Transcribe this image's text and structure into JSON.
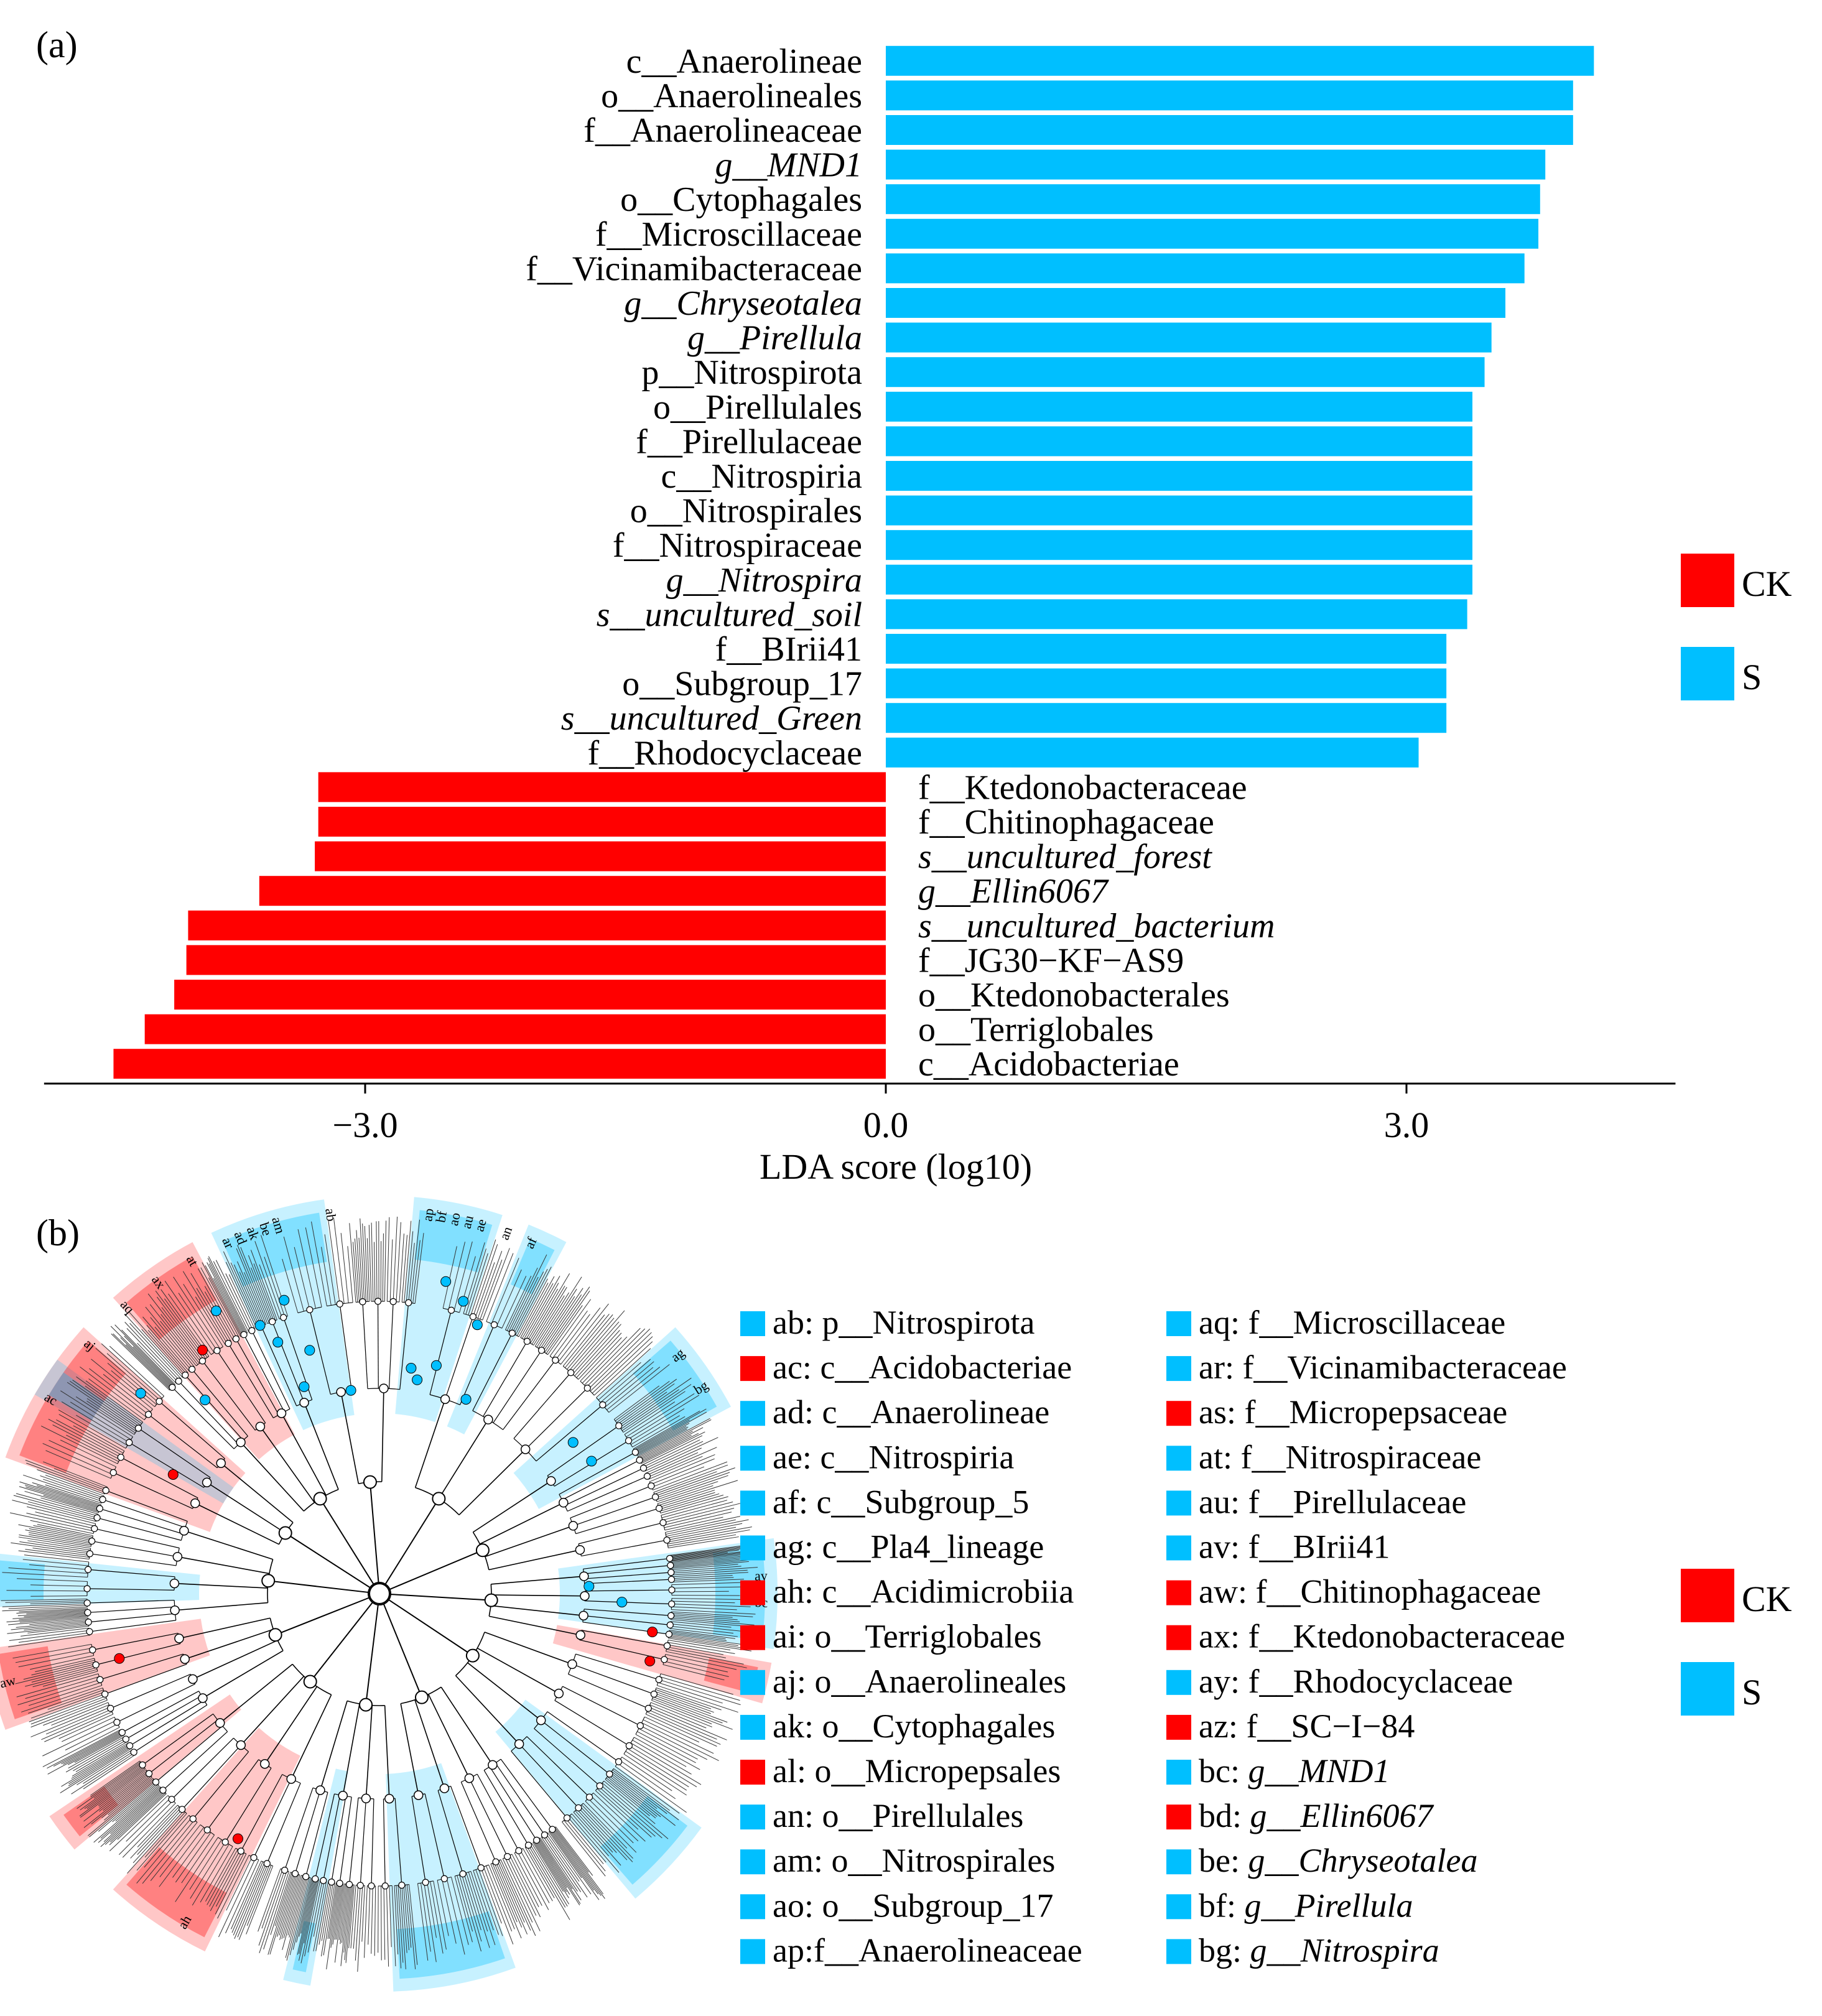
{
  "panels": {
    "a": "(a)",
    "b": "(b)"
  },
  "colors": {
    "CK": "#ff0000",
    "S": "#00bfff",
    "axis": "#000000",
    "tree": "#000000"
  },
  "legend_a": [
    {
      "label": "CK",
      "color": "#ff0000"
    },
    {
      "label": "S",
      "color": "#00bfff"
    }
  ],
  "legend_b": [
    {
      "label": "CK",
      "color": "#ff0000"
    },
    {
      "label": "S",
      "color": "#00bfff"
    }
  ],
  "chart_data": [
    {
      "type": "bar",
      "orientation": "horizontal",
      "xlabel": "LDA score (log10)",
      "xticks": [
        "−3.0",
        "0.0",
        "3.0"
      ],
      "xtick_values": [
        -3.0,
        0.0,
        3.0
      ],
      "xlim": [
        -4.85,
        4.55
      ],
      "grid": false,
      "legend_position": "right",
      "bars": [
        {
          "label": "c__Anaerolineae",
          "value": 4.08,
          "group": "S",
          "italic": false
        },
        {
          "label": "o__Anaerolineales",
          "value": 3.96,
          "group": "S",
          "italic": false
        },
        {
          "label": "f__Anaerolineaceae",
          "value": 3.96,
          "group": "S",
          "italic": false
        },
        {
          "label": "g__MND1",
          "value": 3.8,
          "group": "S",
          "italic": true
        },
        {
          "label": "o__Cytophagales",
          "value": 3.77,
          "group": "S",
          "italic": false
        },
        {
          "label": "f__Microscillaceae",
          "value": 3.76,
          "group": "S",
          "italic": false
        },
        {
          "label": "f__Vicinamibacteraceae",
          "value": 3.68,
          "group": "S",
          "italic": false
        },
        {
          "label": "g__Chryseotalea",
          "value": 3.57,
          "group": "S",
          "italic": true
        },
        {
          "label": "g__Pirellula",
          "value": 3.49,
          "group": "S",
          "italic": true
        },
        {
          "label": "p__Nitrospirota",
          "value": 3.45,
          "group": "S",
          "italic": false
        },
        {
          "label": "o__Pirellulales",
          "value": 3.38,
          "group": "S",
          "italic": false
        },
        {
          "label": "f__Pirellulaceae",
          "value": 3.38,
          "group": "S",
          "italic": false
        },
        {
          "label": "c__Nitrospiria",
          "value": 3.38,
          "group": "S",
          "italic": false
        },
        {
          "label": "o__Nitrospirales",
          "value": 3.38,
          "group": "S",
          "italic": false
        },
        {
          "label": "f__Nitrospiraceae",
          "value": 3.38,
          "group": "S",
          "italic": false
        },
        {
          "label": "g__Nitrospira",
          "value": 3.38,
          "group": "S",
          "italic": true
        },
        {
          "label": "s__uncultured_soil",
          "value": 3.35,
          "group": "S",
          "italic": true
        },
        {
          "label": "f__BIrii41",
          "value": 3.23,
          "group": "S",
          "italic": false
        },
        {
          "label": "o__Subgroup_17",
          "value": 3.23,
          "group": "S",
          "italic": false
        },
        {
          "label": "s__uncultured_Green",
          "value": 3.23,
          "group": "S",
          "italic": true
        },
        {
          "label": "f__Rhodocyclaceae",
          "value": 3.07,
          "group": "S",
          "italic": false
        },
        {
          "label": "f__Ktedonobacteraceae",
          "value": -3.27,
          "group": "CK",
          "italic": false
        },
        {
          "label": "f__Chitinophagaceae",
          "value": -3.27,
          "group": "CK",
          "italic": false
        },
        {
          "label": "s__uncultured_forest",
          "value": -3.29,
          "group": "CK",
          "italic": true
        },
        {
          "label": "g__Ellin6067",
          "value": -3.61,
          "group": "CK",
          "italic": true
        },
        {
          "label": "s__uncultured_bacterium",
          "value": -4.02,
          "group": "CK",
          "italic": true
        },
        {
          "label": "f__JG30−KF−AS9",
          "value": -4.03,
          "group": "CK",
          "italic": false
        },
        {
          "label": "o__Ktedonobacterales",
          "value": -4.1,
          "group": "CK",
          "italic": false
        },
        {
          "label": "o__Terriglobales",
          "value": -4.27,
          "group": "CK",
          "italic": false
        },
        {
          "label": "c__Acidobacteriae",
          "value": -4.45,
          "group": "CK",
          "italic": false
        }
      ]
    },
    {
      "type": "cladogram",
      "labels_on_tree": [
        {
          "code": "ab",
          "group": "S"
        },
        {
          "code": "ac",
          "group": "CK"
        },
        {
          "code": "ad",
          "group": "S"
        },
        {
          "code": "ae",
          "group": "S"
        },
        {
          "code": "af",
          "group": "S"
        },
        {
          "code": "ag",
          "group": "S"
        },
        {
          "code": "ai",
          "group": "CK"
        },
        {
          "code": "aj",
          "group": "S"
        },
        {
          "code": "ak",
          "group": "S"
        },
        {
          "code": "am",
          "group": "S"
        },
        {
          "code": "an",
          "group": "S"
        },
        {
          "code": "ao",
          "group": "S"
        },
        {
          "code": "ap",
          "group": "S"
        },
        {
          "code": "aq",
          "group": "S"
        },
        {
          "code": "ar",
          "group": "S"
        },
        {
          "code": "at",
          "group": "S"
        },
        {
          "code": "au",
          "group": "S"
        },
        {
          "code": "aw",
          "group": "CK"
        },
        {
          "code": "ax",
          "group": "CK"
        },
        {
          "code": "ay",
          "group": "S"
        },
        {
          "code": "bc",
          "group": "S"
        },
        {
          "code": "bd",
          "group": "CK"
        },
        {
          "code": "be",
          "group": "S"
        },
        {
          "code": "bf",
          "group": "S"
        },
        {
          "code": "bg",
          "group": "S"
        },
        {
          "code": "ah",
          "group": "CK"
        }
      ],
      "key": [
        {
          "code": "ab",
          "text": "ab: p__Nitrospirota",
          "group": "S"
        },
        {
          "code": "ac",
          "text": "ac: c__Acidobacteriae",
          "group": "CK"
        },
        {
          "code": "ad",
          "text": "ad: c__Anaerolineae",
          "group": "S"
        },
        {
          "code": "ae",
          "text": "ae: c__Nitrospiria",
          "group": "S"
        },
        {
          "code": "af",
          "text": "af: c__Subgroup_5",
          "group": "S"
        },
        {
          "code": "ag",
          "text": "ag: c__Pla4_lineage",
          "group": "S"
        },
        {
          "code": "ah",
          "text": "ah: c__Acidimicrobiia",
          "group": "CK"
        },
        {
          "code": "ai",
          "text": "ai: o__Terriglobales",
          "group": "CK"
        },
        {
          "code": "aj",
          "text": "aj: o__Anaerolineales",
          "group": "S"
        },
        {
          "code": "ak",
          "text": "ak: o__Cytophagales",
          "group": "S"
        },
        {
          "code": "al",
          "text": "al: o__Micropepsales",
          "group": "CK"
        },
        {
          "code": "an",
          "text": "an: o__Pirellulales",
          "group": "S"
        },
        {
          "code": "am",
          "text": "am: o__Nitrospirales",
          "group": "S"
        },
        {
          "code": "ao",
          "text": "ao: o__Subgroup_17",
          "group": "S"
        },
        {
          "code": "ap",
          "text": "ap:f__Anaerolineaceae",
          "group": "S"
        },
        {
          "code": "aq",
          "text": "aq: f__Microscillaceae",
          "group": "S"
        },
        {
          "code": "ar",
          "text": "ar: f__Vicinamibacteraceae",
          "group": "S"
        },
        {
          "code": "as",
          "text": "as: f__Micropepsaceae",
          "group": "CK"
        },
        {
          "code": "at",
          "text": "at: f__Nitrospiraceae",
          "group": "S"
        },
        {
          "code": "au",
          "text": "au: f__Pirellulaceae",
          "group": "S"
        },
        {
          "code": "av",
          "text": "av: f__BIrii41",
          "group": "S"
        },
        {
          "code": "aw",
          "text": "aw: f__Chitinophagaceae",
          "group": "CK"
        },
        {
          "code": "ax",
          "text": "ax: f__Ktedonobacteraceae",
          "group": "CK"
        },
        {
          "code": "ay",
          "text": "ay: f__Rhodocyclaceae",
          "group": "S"
        },
        {
          "code": "az",
          "text": "az: f__SC−I−84",
          "group": "CK"
        },
        {
          "code": "bc",
          "text": "bc: g__MND1",
          "group": "S",
          "italic_from": 4
        },
        {
          "code": "bd",
          "text": "bd: g__Ellin6067",
          "group": "CK",
          "italic_from": 4
        },
        {
          "code": "be",
          "text": "be: g__Chryseotalea",
          "group": "S",
          "italic_from": 4
        },
        {
          "code": "bf",
          "text": "bf: g__Pirellula",
          "group": "S",
          "italic_from": 4
        },
        {
          "code": "bg",
          "text": "bg: g__Nitrospira",
          "group": "S",
          "italic_from": 4
        }
      ]
    }
  ]
}
